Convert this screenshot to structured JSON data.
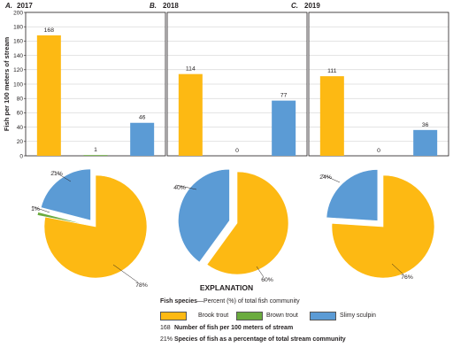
{
  "colors": {
    "brook_trout": "#fdb913",
    "brown_trout": "#6aab3e",
    "slimy_sculpin": "#5b9bd5",
    "axis": "#231f20",
    "grid": "#c8c8c8"
  },
  "y_axis_label": "Fish per 100 meters of stream",
  "chart_data": [
    {
      "type": "bar",
      "panel_letter": "A.",
      "title": "2017",
      "categories": [
        "Brook trout",
        "Brown trout",
        "Slimy sculpin"
      ],
      "values": [
        168,
        1,
        46
      ],
      "value_labels": [
        "168",
        "1",
        "46"
      ],
      "ylim": [
        0,
        200
      ],
      "yticks": [
        0,
        20,
        40,
        60,
        80,
        100,
        120,
        140,
        160,
        180,
        200
      ],
      "grid": true
    },
    {
      "type": "bar",
      "panel_letter": "B.",
      "title": "2018",
      "categories": [
        "Brook trout",
        "Brown trout",
        "Slimy sculpin"
      ],
      "values": [
        114,
        0,
        77
      ],
      "value_labels": [
        "114",
        "0",
        "77"
      ],
      "ylim": [
        0,
        200
      ],
      "grid": true
    },
    {
      "type": "bar",
      "panel_letter": "C.",
      "title": "2019",
      "categories": [
        "Brook trout",
        "Brown trout",
        "Slimy sculpin"
      ],
      "values": [
        111,
        0,
        36
      ],
      "value_labels": [
        "111",
        "0",
        "36"
      ],
      "ylim": [
        0,
        200
      ],
      "grid": true
    },
    {
      "type": "pie",
      "title": "2017",
      "categories": [
        "Brook trout",
        "Brown trout",
        "Slimy sculpin"
      ],
      "values": [
        78,
        1,
        21
      ],
      "labels": [
        "78%",
        "1%",
        "21%"
      ]
    },
    {
      "type": "pie",
      "title": "2018",
      "categories": [
        "Brook trout",
        "Brown trout",
        "Slimy sculpin"
      ],
      "values": [
        60,
        0,
        40
      ],
      "labels": [
        "60%",
        "",
        "40%"
      ]
    },
    {
      "type": "pie",
      "title": "2019",
      "categories": [
        "Brook trout",
        "Brown trout",
        "Slimy sculpin"
      ],
      "values": [
        76,
        0,
        24
      ],
      "labels": [
        "76%",
        "",
        "24%"
      ]
    }
  ],
  "legend": {
    "title": "EXPLANATION",
    "species_heading": "Fish species",
    "species_subheading": "—Percent (%) of total fish community",
    "items": [
      {
        "label": "Brook trout",
        "color": "#fdb913"
      },
      {
        "label": "Brown trout",
        "color": "#6aab3e"
      },
      {
        "label": "Slimy sculpin",
        "color": "#5b9bd5"
      }
    ],
    "count_key": "168",
    "count_text": "Number of fish per 100 meters of stream",
    "percent_key": "21%",
    "percent_text": "Species of fish as a percentage of total stream community"
  }
}
